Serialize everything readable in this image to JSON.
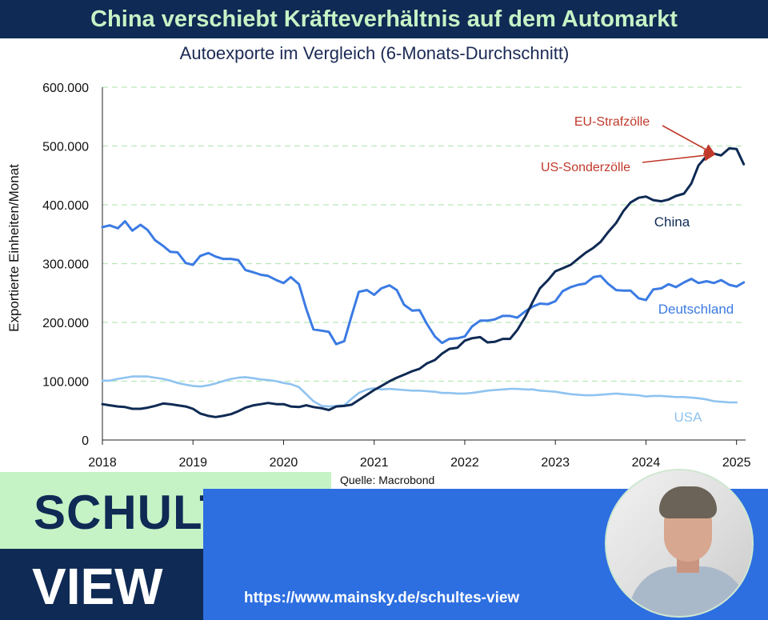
{
  "header": {
    "title": "China verschiebt Kräfteverhältnis auf dem Automarkt"
  },
  "source": "Quelle: Macrobond",
  "branding": {
    "name_line1": "SCHULTES",
    "name_line2": "VIEW",
    "url": "https://www.mainsky.de/schultes-view",
    "colors": {
      "navy": "#0f2a54",
      "mint": "#c6f3c6",
      "blue": "#2d6fe0"
    }
  },
  "chart_data": {
    "type": "line",
    "title": "Autoexporte im Vergleich (6-Monats-Durchschnitt)",
    "xlabel": "",
    "ylabel": "Exportierte Einheiten/Monat",
    "xlim": [
      2018,
      2025.1
    ],
    "ylim": [
      0,
      600000
    ],
    "x_ticks": [
      2018,
      2019,
      2020,
      2021,
      2022,
      2023,
      2024,
      2025
    ],
    "x_tick_labels": [
      "2018",
      "2019",
      "2020",
      "2021",
      "2022",
      "2023",
      "2024",
      "2025"
    ],
    "y_ticks": [
      0,
      100000,
      200000,
      300000,
      400000,
      500000,
      600000
    ],
    "y_tick_labels": [
      "0",
      "100.000",
      "200.000",
      "300.000",
      "400.000",
      "500.000",
      "600.000"
    ],
    "grid": "horizontal dashed",
    "series": [
      {
        "name": "China",
        "color": "#0f2a54",
        "points": [
          [
            2018,
            61000
          ],
          [
            2018.08,
            59000
          ],
          [
            2018.17,
            57000
          ],
          [
            2018.25,
            56000
          ],
          [
            2018.33,
            53000
          ],
          [
            2018.42,
            53000
          ],
          [
            2018.5,
            55000
          ],
          [
            2018.58,
            58000
          ],
          [
            2018.67,
            62000
          ],
          [
            2018.75,
            61000
          ],
          [
            2018.83,
            59000
          ],
          [
            2018.92,
            57000
          ],
          [
            2019,
            53000
          ],
          [
            2019.08,
            45000
          ],
          [
            2019.17,
            41000
          ],
          [
            2019.25,
            39000
          ],
          [
            2019.33,
            41000
          ],
          [
            2019.42,
            44000
          ],
          [
            2019.5,
            49000
          ],
          [
            2019.58,
            55000
          ],
          [
            2019.67,
            59000
          ],
          [
            2019.75,
            61000
          ],
          [
            2019.83,
            63000
          ],
          [
            2019.92,
            61000
          ],
          [
            2020,
            61000
          ],
          [
            2020.08,
            57000
          ],
          [
            2020.17,
            56000
          ],
          [
            2020.25,
            59000
          ],
          [
            2020.33,
            56000
          ],
          [
            2020.42,
            54000
          ],
          [
            2020.5,
            51000
          ],
          [
            2020.58,
            57000
          ],
          [
            2020.67,
            58000
          ],
          [
            2020.75,
            60000
          ],
          [
            2020.83,
            68000
          ],
          [
            2020.92,
            77000
          ],
          [
            2021,
            85000
          ],
          [
            2021.08,
            92000
          ],
          [
            2021.17,
            100000
          ],
          [
            2021.25,
            106000
          ],
          [
            2021.33,
            111000
          ],
          [
            2021.42,
            117000
          ],
          [
            2021.5,
            121000
          ],
          [
            2021.58,
            130000
          ],
          [
            2021.67,
            136000
          ],
          [
            2021.75,
            147000
          ],
          [
            2021.83,
            155000
          ],
          [
            2021.92,
            157000
          ],
          [
            2022,
            169000
          ],
          [
            2022.08,
            173000
          ],
          [
            2022.17,
            175000
          ],
          [
            2022.25,
            166000
          ],
          [
            2022.33,
            167000
          ],
          [
            2022.42,
            172000
          ],
          [
            2022.5,
            172000
          ],
          [
            2022.58,
            187000
          ],
          [
            2022.67,
            210000
          ],
          [
            2022.75,
            235000
          ],
          [
            2022.83,
            258000
          ],
          [
            2022.92,
            272000
          ],
          [
            2023,
            287000
          ],
          [
            2023.08,
            292000
          ],
          [
            2023.17,
            298000
          ],
          [
            2023.25,
            308000
          ],
          [
            2023.33,
            318000
          ],
          [
            2023.42,
            327000
          ],
          [
            2023.5,
            337000
          ],
          [
            2023.58,
            353000
          ],
          [
            2023.67,
            369000
          ],
          [
            2023.75,
            389000
          ],
          [
            2023.83,
            404000
          ],
          [
            2023.92,
            412000
          ],
          [
            2024,
            414000
          ],
          [
            2024.08,
            408000
          ],
          [
            2024.17,
            406000
          ],
          [
            2024.25,
            409000
          ],
          [
            2024.33,
            415000
          ],
          [
            2024.42,
            419000
          ],
          [
            2024.5,
            436000
          ],
          [
            2024.58,
            467000
          ],
          [
            2024.67,
            483000
          ],
          [
            2024.75,
            487000
          ],
          [
            2024.83,
            484000
          ],
          [
            2024.92,
            496000
          ],
          [
            2025,
            495000
          ],
          [
            2025.08,
            469000
          ]
        ]
      },
      {
        "name": "Deutschland",
        "color": "#3b7be3",
        "points": [
          [
            2018,
            362000
          ],
          [
            2018.08,
            365000
          ],
          [
            2018.17,
            360000
          ],
          [
            2018.25,
            372000
          ],
          [
            2018.33,
            356000
          ],
          [
            2018.42,
            366000
          ],
          [
            2018.5,
            357000
          ],
          [
            2018.58,
            340000
          ],
          [
            2018.67,
            330000
          ],
          [
            2018.75,
            320000
          ],
          [
            2018.83,
            319000
          ],
          [
            2018.92,
            301000
          ],
          [
            2019,
            298000
          ],
          [
            2019.08,
            313000
          ],
          [
            2019.17,
            318000
          ],
          [
            2019.25,
            312000
          ],
          [
            2019.33,
            308000
          ],
          [
            2019.42,
            308000
          ],
          [
            2019.5,
            306000
          ],
          [
            2019.58,
            289000
          ],
          [
            2019.67,
            285000
          ],
          [
            2019.75,
            281000
          ],
          [
            2019.83,
            279000
          ],
          [
            2019.92,
            272000
          ],
          [
            2020,
            267000
          ],
          [
            2020.08,
            277000
          ],
          [
            2020.17,
            265000
          ],
          [
            2020.25,
            223000
          ],
          [
            2020.33,
            188000
          ],
          [
            2020.42,
            186000
          ],
          [
            2020.5,
            184000
          ],
          [
            2020.58,
            163000
          ],
          [
            2020.67,
            168000
          ],
          [
            2020.75,
            211000
          ],
          [
            2020.83,
            252000
          ],
          [
            2020.92,
            255000
          ],
          [
            2021,
            247000
          ],
          [
            2021.08,
            258000
          ],
          [
            2021.17,
            263000
          ],
          [
            2021.25,
            255000
          ],
          [
            2021.33,
            230000
          ],
          [
            2021.42,
            220000
          ],
          [
            2021.5,
            221000
          ],
          [
            2021.58,
            198000
          ],
          [
            2021.67,
            176000
          ],
          [
            2021.75,
            165000
          ],
          [
            2021.83,
            172000
          ],
          [
            2021.92,
            173000
          ],
          [
            2022,
            176000
          ],
          [
            2022.08,
            193000
          ],
          [
            2022.17,
            203000
          ],
          [
            2022.25,
            203000
          ],
          [
            2022.33,
            205000
          ],
          [
            2022.42,
            211000
          ],
          [
            2022.5,
            211000
          ],
          [
            2022.58,
            208000
          ],
          [
            2022.67,
            219000
          ],
          [
            2022.75,
            227000
          ],
          [
            2022.83,
            232000
          ],
          [
            2022.92,
            231000
          ],
          [
            2023,
            236000
          ],
          [
            2023.08,
            253000
          ],
          [
            2023.17,
            260000
          ],
          [
            2023.25,
            264000
          ],
          [
            2023.33,
            266000
          ],
          [
            2023.42,
            277000
          ],
          [
            2023.5,
            279000
          ],
          [
            2023.58,
            266000
          ],
          [
            2023.67,
            255000
          ],
          [
            2023.75,
            254000
          ],
          [
            2023.83,
            254000
          ],
          [
            2023.92,
            241000
          ],
          [
            2024,
            238000
          ],
          [
            2024.08,
            256000
          ],
          [
            2024.17,
            258000
          ],
          [
            2024.25,
            265000
          ],
          [
            2024.33,
            260000
          ],
          [
            2024.42,
            268000
          ],
          [
            2024.5,
            274000
          ],
          [
            2024.58,
            267000
          ],
          [
            2024.67,
            270000
          ],
          [
            2024.75,
            267000
          ],
          [
            2024.83,
            272000
          ],
          [
            2024.92,
            264000
          ],
          [
            2025,
            261000
          ],
          [
            2025.08,
            268000
          ]
        ]
      },
      {
        "name": "USA",
        "color": "#8fc3f0",
        "points": [
          [
            2018,
            101000
          ],
          [
            2018.08,
            101000
          ],
          [
            2018.17,
            104000
          ],
          [
            2018.25,
            106000
          ],
          [
            2018.33,
            108000
          ],
          [
            2018.42,
            108000
          ],
          [
            2018.5,
            108000
          ],
          [
            2018.58,
            106000
          ],
          [
            2018.67,
            104000
          ],
          [
            2018.75,
            101000
          ],
          [
            2018.83,
            97000
          ],
          [
            2018.92,
            94000
          ],
          [
            2019,
            92000
          ],
          [
            2019.08,
            91000
          ],
          [
            2019.17,
            93000
          ],
          [
            2019.25,
            96000
          ],
          [
            2019.33,
            100000
          ],
          [
            2019.42,
            104000
          ],
          [
            2019.5,
            106000
          ],
          [
            2019.58,
            107000
          ],
          [
            2019.67,
            105000
          ],
          [
            2019.75,
            103000
          ],
          [
            2019.83,
            102000
          ],
          [
            2019.92,
            100000
          ],
          [
            2020,
            97000
          ],
          [
            2020.08,
            95000
          ],
          [
            2020.17,
            90000
          ],
          [
            2020.25,
            78000
          ],
          [
            2020.33,
            66000
          ],
          [
            2020.42,
            58000
          ],
          [
            2020.5,
            57000
          ],
          [
            2020.58,
            58000
          ],
          [
            2020.67,
            59000
          ],
          [
            2020.75,
            70000
          ],
          [
            2020.83,
            80000
          ],
          [
            2020.92,
            86000
          ],
          [
            2021,
            88000
          ],
          [
            2021.08,
            86000
          ],
          [
            2021.17,
            87000
          ],
          [
            2021.25,
            86000
          ],
          [
            2021.33,
            85000
          ],
          [
            2021.42,
            84000
          ],
          [
            2021.5,
            84000
          ],
          [
            2021.58,
            83000
          ],
          [
            2021.67,
            82000
          ],
          [
            2021.75,
            80000
          ],
          [
            2021.83,
            80000
          ],
          [
            2021.92,
            79000
          ],
          [
            2022,
            79000
          ],
          [
            2022.08,
            80000
          ],
          [
            2022.17,
            82000
          ],
          [
            2022.25,
            84000
          ],
          [
            2022.33,
            85000
          ],
          [
            2022.42,
            86000
          ],
          [
            2022.5,
            87000
          ],
          [
            2022.58,
            87000
          ],
          [
            2022.67,
            86000
          ],
          [
            2022.75,
            86000
          ],
          [
            2022.83,
            84000
          ],
          [
            2022.92,
            83000
          ],
          [
            2023,
            82000
          ],
          [
            2023.08,
            80000
          ],
          [
            2023.17,
            78000
          ],
          [
            2023.25,
            77000
          ],
          [
            2023.33,
            76000
          ],
          [
            2023.42,
            76000
          ],
          [
            2023.5,
            77000
          ],
          [
            2023.58,
            78000
          ],
          [
            2023.67,
            79000
          ],
          [
            2023.75,
            78000
          ],
          [
            2023.83,
            77000
          ],
          [
            2023.92,
            76000
          ],
          [
            2024,
            74000
          ],
          [
            2024.08,
            75000
          ],
          [
            2024.17,
            75000
          ],
          [
            2024.25,
            74000
          ],
          [
            2024.33,
            73000
          ],
          [
            2024.42,
            73000
          ],
          [
            2024.5,
            72000
          ],
          [
            2024.58,
            71000
          ],
          [
            2024.67,
            69000
          ],
          [
            2024.75,
            66000
          ],
          [
            2024.83,
            65000
          ],
          [
            2024.92,
            64000
          ],
          [
            2025,
            64000
          ]
        ]
      }
    ],
    "annotations": [
      {
        "text": "EU-Strafzölle",
        "color": "#c0392b",
        "arrow_to": [
          2024.67,
          490000
        ]
      },
      {
        "text": "US-Sonderzölle",
        "color": "#c0392b",
        "arrow_to": [
          2024.67,
          490000
        ]
      }
    ]
  }
}
